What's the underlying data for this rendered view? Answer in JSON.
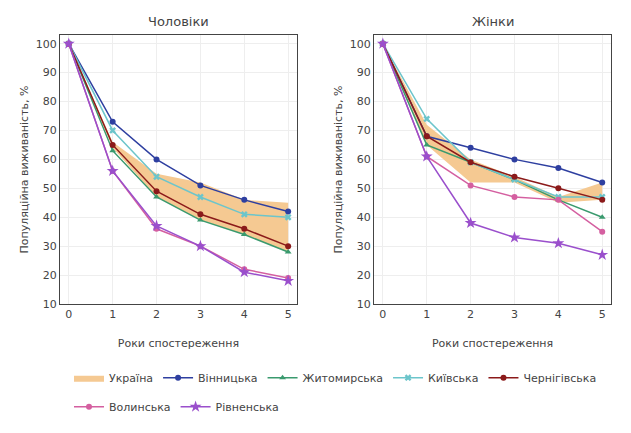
{
  "chart_data": [
    {
      "type": "line",
      "title": "Чоловіки",
      "xlabel": "Роки спостереження",
      "ylabel": "Популяційна виживаність, %",
      "x": [
        0,
        1,
        2,
        3,
        4,
        5
      ],
      "xlim": [
        -0.2,
        5.2
      ],
      "xticks": [
        0,
        1,
        2,
        3,
        4,
        5
      ],
      "ylim": [
        10,
        103
      ],
      "yticks": [
        10,
        20,
        30,
        40,
        50,
        60,
        70,
        80,
        90,
        100
      ],
      "grid": true,
      "legend": "bottom",
      "series": [
        {
          "name": "Україна",
          "type": "band",
          "color": "#f5c992",
          "lower": [
            100,
            64,
            47,
            39,
            34,
            28
          ],
          "upper": [
            100,
            66,
            55,
            52,
            46,
            45
          ]
        },
        {
          "name": "Вінницька",
          "color": "#2e3fa0",
          "marker": "circle",
          "values": [
            100,
            73,
            60,
            51,
            46,
            42
          ]
        },
        {
          "name": "Житомирська",
          "color": "#3a9a6e",
          "marker": "triangle-up",
          "values": [
            100,
            63,
            47,
            39,
            34,
            28
          ]
        },
        {
          "name": "Київська",
          "color": "#6cc5cb",
          "marker": "x",
          "values": [
            100,
            70,
            54,
            47,
            41,
            40
          ]
        },
        {
          "name": "Чернігівська",
          "color": "#8b1a1a",
          "marker": "circle",
          "values": [
            100,
            65,
            49,
            41,
            36,
            30
          ]
        },
        {
          "name": "Волинська",
          "color": "#d45fa0",
          "marker": "circle",
          "values": [
            100,
            56,
            36,
            30,
            22,
            19
          ]
        },
        {
          "name": "Рівненська",
          "color": "#9a4fcc",
          "marker": "star",
          "values": [
            100,
            56,
            37,
            30,
            21,
            18
          ]
        }
      ]
    },
    {
      "type": "line",
      "title": "Жінки",
      "xlabel": "Роки спостереження",
      "ylabel": "Популяційна виживаність, %",
      "x": [
        0,
        1,
        2,
        3,
        4,
        5
      ],
      "xlim": [
        -0.2,
        5.2
      ],
      "xticks": [
        0,
        1,
        2,
        3,
        4,
        5
      ],
      "ylim": [
        10,
        103
      ],
      "yticks": [
        10,
        20,
        30,
        40,
        50,
        60,
        70,
        80,
        90,
        100
      ],
      "grid": true,
      "legend": "bottom",
      "series": [
        {
          "name": "Україна",
          "type": "band",
          "color": "#f5c992",
          "lower": [
            100,
            65,
            52,
            52,
            45,
            46
          ],
          "upper": [
            100,
            72,
            60,
            54,
            47,
            52
          ]
        },
        {
          "name": "Вінницька",
          "color": "#2e3fa0",
          "marker": "circle",
          "values": [
            100,
            68,
            64,
            60,
            57,
            52
          ]
        },
        {
          "name": "Житомирська",
          "color": "#3a9a6e",
          "marker": "triangle-up",
          "values": [
            100,
            65,
            59,
            53,
            46,
            40
          ]
        },
        {
          "name": "Київська",
          "color": "#6cc5cb",
          "marker": "x",
          "values": [
            100,
            74,
            59,
            53,
            47,
            47
          ]
        },
        {
          "name": "Чернігівська",
          "color": "#8b1a1a",
          "marker": "circle",
          "values": [
            100,
            68,
            59,
            54,
            50,
            46
          ]
        },
        {
          "name": "Волинська",
          "color": "#d45fa0",
          "marker": "circle",
          "values": [
            100,
            61,
            51,
            47,
            46,
            35
          ]
        },
        {
          "name": "Рівненська",
          "color": "#9a4fcc",
          "marker": "star",
          "values": [
            100,
            61,
            38,
            33,
            31,
            27
          ]
        }
      ]
    }
  ]
}
